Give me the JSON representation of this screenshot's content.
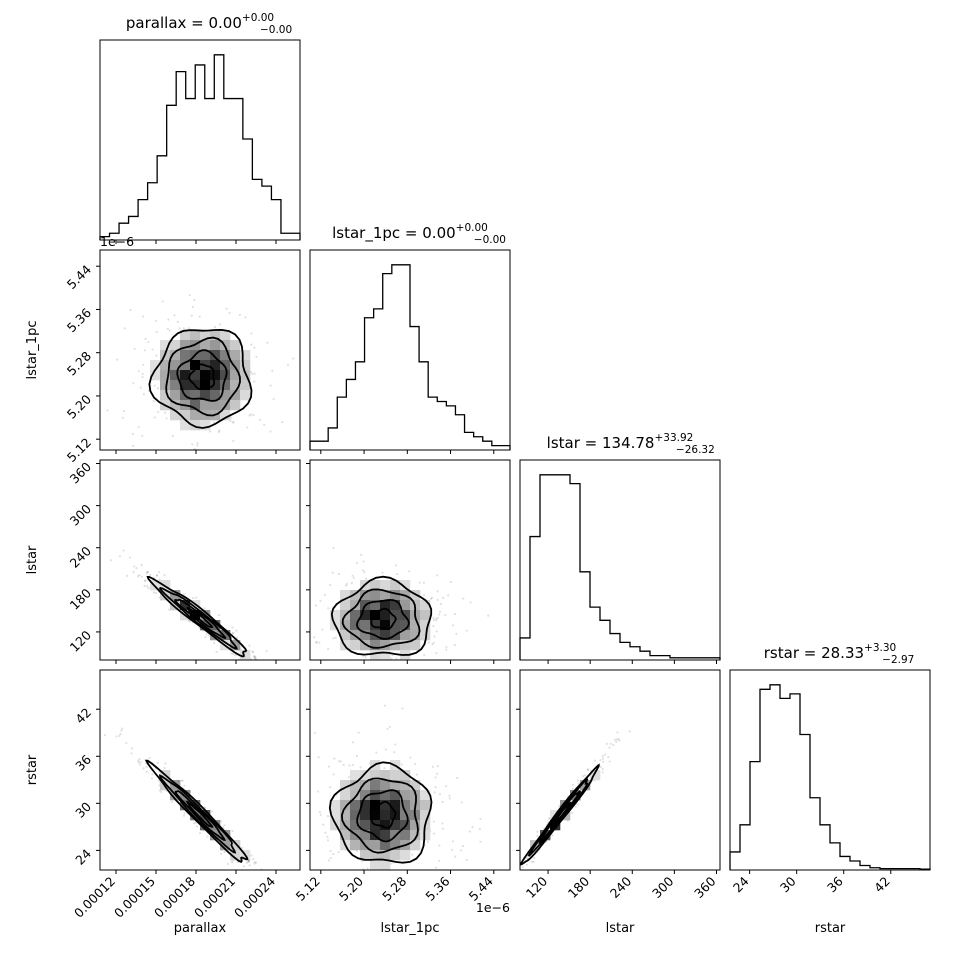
{
  "chart_data": {
    "type": "corner",
    "parameters": [
      "parallax",
      "lstar_1pc",
      "lstar",
      "rstar"
    ],
    "offset_texts": {
      "lstar_1pc_y": "1e−6",
      "lstar_1pc_x": "1e−6"
    },
    "titles": [
      {
        "param": "parallax",
        "median": "0.00",
        "plus": "+0.00",
        "minus": "−0.00"
      },
      {
        "param": "lstar_1pc",
        "median": "0.00",
        "plus": "+0.00",
        "minus": "−0.00"
      },
      {
        "param": "lstar",
        "median": "134.78",
        "plus": "+33.92",
        "minus": "−26.32"
      },
      {
        "param": "rstar",
        "median": "28.33",
        "plus": "+3.30",
        "minus": "−2.97"
      }
    ],
    "axes": [
      {
        "param": "parallax",
        "range": [
          0.000108,
          0.000258
        ],
        "ticks": [
          0.00012,
          0.00015,
          0.00018,
          0.00021,
          0.00024
        ],
        "tick_labels": [
          "0.00012",
          "0.00015",
          "0.00018",
          "0.00021",
          "0.00024"
        ]
      },
      {
        "param": "lstar_1pc",
        "range": [
          5.1,
          5.47
        ],
        "ticks": [
          5.12,
          5.2,
          5.28,
          5.36,
          5.44
        ],
        "tick_labels": [
          "5.12",
          "5.20",
          "5.28",
          "5.36",
          "5.44"
        ]
      },
      {
        "param": "lstar",
        "range": [
          80,
          365
        ],
        "ticks": [
          120,
          180,
          240,
          300,
          360
        ],
        "tick_labels": [
          "120",
          "180",
          "240",
          "300",
          "360"
        ]
      },
      {
        "param": "rstar",
        "range": [
          21.5,
          47
        ],
        "ticks": [
          24,
          30,
          36,
          42
        ],
        "tick_labels": [
          "24",
          "30",
          "36",
          "42"
        ]
      }
    ],
    "histograms": [
      {
        "param": "parallax",
        "counts": [
          1,
          2,
          5,
          7,
          12,
          17,
          25,
          40,
          50,
          42,
          52,
          42,
          55,
          42,
          42,
          30,
          18,
          16,
          12,
          2,
          2
        ]
      },
      {
        "param": "lstar_1pc",
        "counts": [
          2,
          2,
          5,
          12,
          16,
          20,
          30,
          32,
          40,
          42,
          42,
          28,
          20,
          12,
          11,
          10,
          8,
          4,
          3,
          2,
          1,
          1
        ]
      },
      {
        "param": "lstar",
        "counts": [
          5,
          28,
          42,
          42,
          42,
          40,
          20,
          12,
          9,
          6,
          4,
          3,
          2,
          1,
          1,
          0.5,
          0.5,
          0.5,
          0.5,
          0.5
        ]
      },
      {
        "param": "rstar",
        "counts": [
          4,
          10,
          24,
          40,
          41,
          38,
          39,
          30,
          16,
          10,
          6,
          3,
          2,
          1,
          0.5,
          0.3,
          0.3,
          0.3,
          0.3,
          0.2
        ]
      }
    ],
    "pairs": [
      {
        "x": "parallax",
        "y": "lstar_1pc",
        "center": [
          0.000185,
          5.235
        ],
        "spread": [
          1.8e-05,
          0.045
        ],
        "corr": 0.0
      },
      {
        "x": "parallax",
        "y": "lstar",
        "center": [
          0.000183,
          140
        ],
        "spread": [
          1.8e-05,
          27
        ],
        "corr": -0.97
      },
      {
        "x": "lstar_1pc",
        "y": "lstar",
        "center": [
          5.235,
          138
        ],
        "spread": [
          0.045,
          27
        ],
        "corr": 0.0
      },
      {
        "x": "parallax",
        "y": "rstar",
        "center": [
          0.000183,
          28.5
        ],
        "spread": [
          1.8e-05,
          3.1
        ],
        "corr": -0.98
      },
      {
        "x": "lstar_1pc",
        "y": "rstar",
        "center": [
          5.235,
          28.5
        ],
        "spread": [
          0.045,
          3.1
        ],
        "corr": 0.0
      },
      {
        "x": "lstar",
        "y": "rstar",
        "center": [
          138,
          28.5
        ],
        "spread": [
          27,
          3.1
        ],
        "corr": 0.99
      }
    ],
    "contour_levels": [
      0.5,
      1.0,
      1.5,
      2.0
    ]
  }
}
